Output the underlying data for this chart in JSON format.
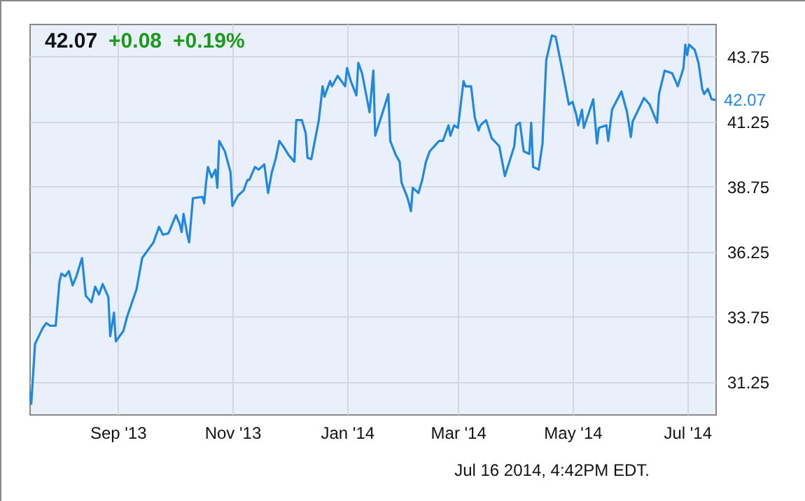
{
  "chart_data": {
    "type": "line",
    "title": "42.07",
    "annotations": [
      "+0.08",
      "+0.19%",
      "Jul 16 2014, 4:42PM EDT.",
      {
        "text": "42.07",
        "x": "2014-07-16",
        "y": 42.07
      }
    ],
    "x": [
      "2013-07-16",
      "2013-07-17",
      "2013-07-19",
      "2013-07-21",
      "2013-07-23",
      "2013-07-25",
      "2013-07-27",
      "2013-07-30",
      "2013-08-01",
      "2013-08-02",
      "2013-08-04",
      "2013-08-06",
      "2013-08-08",
      "2013-08-10",
      "2013-08-13",
      "2013-08-15",
      "2013-08-18",
      "2013-08-20",
      "2013-08-22",
      "2013-08-24",
      "2013-08-27",
      "2013-08-28",
      "2013-08-30",
      "2013-08-31",
      "2013-09-04",
      "2013-09-06",
      "2013-09-11",
      "2013-09-14",
      "2013-09-18",
      "2013-09-20",
      "2013-09-23",
      "2013-09-25",
      "2013-09-28",
      "2013-10-02",
      "2013-10-04",
      "2013-10-05",
      "2013-10-06",
      "2013-10-08",
      "2013-10-09",
      "2013-10-11",
      "2013-10-16",
      "2013-10-17",
      "2013-10-18",
      "2013-10-19",
      "2013-10-21",
      "2013-10-23",
      "2013-10-24",
      "2013-10-25",
      "2013-10-28",
      "2013-10-31",
      "2013-11-01",
      "2013-11-04",
      "2013-11-07",
      "2013-11-09",
      "2013-11-10",
      "2013-11-13",
      "2013-11-15",
      "2013-11-18",
      "2013-11-20",
      "2013-11-22",
      "2013-11-24",
      "2013-11-26",
      "2013-11-28",
      "2013-12-01",
      "2013-12-04",
      "2013-12-05",
      "2013-12-08",
      "2013-12-10",
      "2013-12-11",
      "2013-12-13",
      "2013-12-17",
      "2013-12-19",
      "2013-12-20",
      "2013-12-23",
      "2013-12-24",
      "2013-12-27",
      "2013-12-31",
      "2014-01-01",
      "2014-01-03",
      "2014-01-06",
      "2014-01-07",
      "2014-01-09",
      "2014-01-13",
      "2014-01-15",
      "2014-01-16",
      "2014-01-23",
      "2014-01-24",
      "2014-01-27",
      "2014-01-29",
      "2014-01-30",
      "2014-02-02",
      "2014-02-03",
      "2014-02-04",
      "2014-02-05",
      "2014-02-08",
      "2014-02-10",
      "2014-02-12",
      "2014-02-14",
      "2014-02-19",
      "2014-02-21",
      "2014-02-22",
      "2014-02-24",
      "2014-02-25",
      "2014-02-27",
      "2014-03-01",
      "2014-03-04",
      "2014-03-05",
      "2014-03-08",
      "2014-03-10",
      "2014-03-12",
      "2014-03-13",
      "2014-03-16",
      "2014-03-19",
      "2014-03-23",
      "2014-03-26",
      "2014-03-31",
      "2014-04-01",
      "2014-04-03",
      "2014-04-05",
      "2014-04-08",
      "2014-04-09",
      "2014-04-10",
      "2014-04-13",
      "2014-04-15",
      "2014-04-17",
      "2014-04-20",
      "2014-04-22",
      "2014-04-26",
      "2014-04-29",
      "2014-05-01",
      "2014-05-03",
      "2014-05-04",
      "2014-05-06",
      "2014-05-07",
      "2014-05-12",
      "2014-05-14",
      "2014-05-15",
      "2014-05-19",
      "2014-05-20",
      "2014-05-22",
      "2014-05-27",
      "2014-05-30",
      "2014-06-01",
      "2014-06-02",
      "2014-06-08",
      "2014-06-11",
      "2014-06-15",
      "2014-06-16",
      "2014-06-19",
      "2014-06-23",
      "2014-06-26",
      "2014-06-29",
      "2014-06-30",
      "2014-07-01",
      "2014-07-02",
      "2014-07-05",
      "2014-07-07",
      "2014-07-09",
      "2014-07-10",
      "2014-07-12",
      "2014-07-14",
      "2014-07-16"
    ],
    "series": [
      {
        "color": "#2088e0",
        "values": [
          30.9,
          30.4,
          32.7,
          33.0,
          33.3,
          33.5,
          33.4,
          33.4,
          35.1,
          35.4,
          35.3,
          35.5,
          34.95,
          35.3,
          36.0,
          34.55,
          34.3,
          34.9,
          34.6,
          35.0,
          34.5,
          33.0,
          33.9,
          32.8,
          33.2,
          33.75,
          34.8,
          36.0,
          36.4,
          36.6,
          37.2,
          36.9,
          36.95,
          37.65,
          37.3,
          37.0,
          37.7,
          36.9,
          36.6,
          38.3,
          38.35,
          38.1,
          38.9,
          39.5,
          39.1,
          39.4,
          38.7,
          40.5,
          40.1,
          39.3,
          38.0,
          38.4,
          38.6,
          39.0,
          39.0,
          39.5,
          39.4,
          39.6,
          38.5,
          39.3,
          39.8,
          40.5,
          40.3,
          39.95,
          39.7,
          41.3,
          41.3,
          40.8,
          39.85,
          39.8,
          41.3,
          42.6,
          42.2,
          42.8,
          42.6,
          43.0,
          42.6,
          43.3,
          42.8,
          42.25,
          43.5,
          43.1,
          41.6,
          43.2,
          40.7,
          42.3,
          40.5,
          39.95,
          39.7,
          38.9,
          38.35,
          38.1,
          37.8,
          38.7,
          38.5,
          39.0,
          39.7,
          40.1,
          40.5,
          40.5,
          40.7,
          41.1,
          40.7,
          41.1,
          41.0,
          42.8,
          42.6,
          42.6,
          41.4,
          40.9,
          41.1,
          41.3,
          40.6,
          40.3,
          39.15,
          40.3,
          41.1,
          41.2,
          40.1,
          40.0,
          41.2,
          39.5,
          39.4,
          40.4,
          43.6,
          44.55,
          44.5,
          43.05,
          41.9,
          42.0,
          41.5,
          41.1,
          41.7,
          41.0,
          42.1,
          40.4,
          41.0,
          41.1,
          40.5,
          41.7,
          42.4,
          41.6,
          40.65,
          41.25,
          42.15,
          41.9,
          41.2,
          42.3,
          43.2,
          43.1,
          42.6,
          43.3,
          44.2,
          43.8,
          44.2,
          44.0,
          43.5,
          42.5,
          42.3,
          42.5,
          42.1,
          42.07
        ]
      }
    ],
    "xlim": [
      "2013-07-16",
      "2014-07-16"
    ],
    "xticks": [
      {
        "value": "2013-09-01",
        "label": "Sep '13"
      },
      {
        "value": "2013-11-01",
        "label": "Nov '13"
      },
      {
        "value": "2014-01-01",
        "label": "Jan '14"
      },
      {
        "value": "2014-03-01",
        "label": "Mar '14"
      },
      {
        "value": "2014-05-01",
        "label": "May '14"
      },
      {
        "value": "2014-07-01",
        "label": "Jul '14"
      }
    ],
    "ylim": [
      30,
      45
    ],
    "yticks": [
      31.25,
      33.75,
      36.25,
      38.75,
      41.25,
      43.75
    ],
    "grid": true
  }
}
